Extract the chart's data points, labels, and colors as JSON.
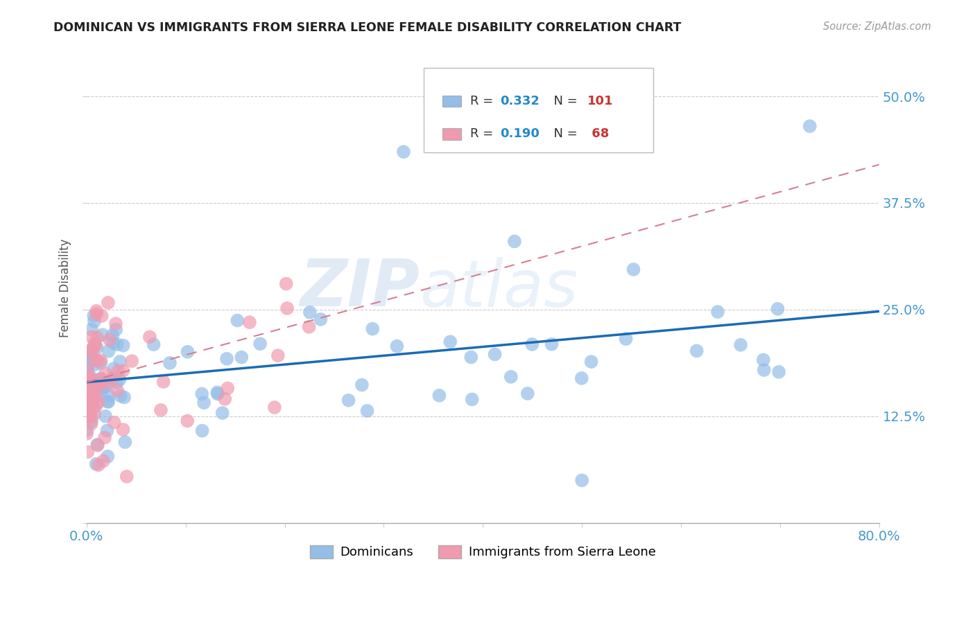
{
  "title": "DOMINICAN VS IMMIGRANTS FROM SIERRA LEONE FEMALE DISABILITY CORRELATION CHART",
  "source": "Source: ZipAtlas.com",
  "ylabel": "Female Disability",
  "xlim": [
    0.0,
    0.8
  ],
  "ylim": [
    0.0,
    0.55
  ],
  "yticks": [
    0.0,
    0.125,
    0.25,
    0.375,
    0.5
  ],
  "ytick_labels": [
    "",
    "12.5%",
    "25.0%",
    "37.5%",
    "50.0%"
  ],
  "xticks": [
    0.0,
    0.1,
    0.2,
    0.3,
    0.4,
    0.5,
    0.6,
    0.7,
    0.8
  ],
  "xtick_labels": [
    "0.0%",
    "",
    "",
    "",
    "",
    "",
    "",
    "",
    "80.0%"
  ],
  "dominicans_color": "#93BEE8",
  "sierra_leone_color": "#F09AAF",
  "trend_dominicans_color": "#1A6BB5",
  "trend_sierra_leone_color": "#D48090",
  "R_dominicans": 0.332,
  "N_dominicans": 101,
  "R_sierra_leone": 0.19,
  "N_sierra_leone": 68,
  "legend_R_color": "#2288CC",
  "legend_N_color": "#CC3333",
  "watermark_zip": "ZIP",
  "watermark_atlas": "atlas",
  "background_color": "#FFFFFF",
  "grid_color": "#CCCCCC",
  "title_color": "#222222",
  "tick_color": "#4499CC",
  "blue_trend_start_y": 0.165,
  "blue_trend_end_y": 0.248,
  "pink_trend_start_y": 0.165,
  "pink_trend_end_y": 0.42
}
